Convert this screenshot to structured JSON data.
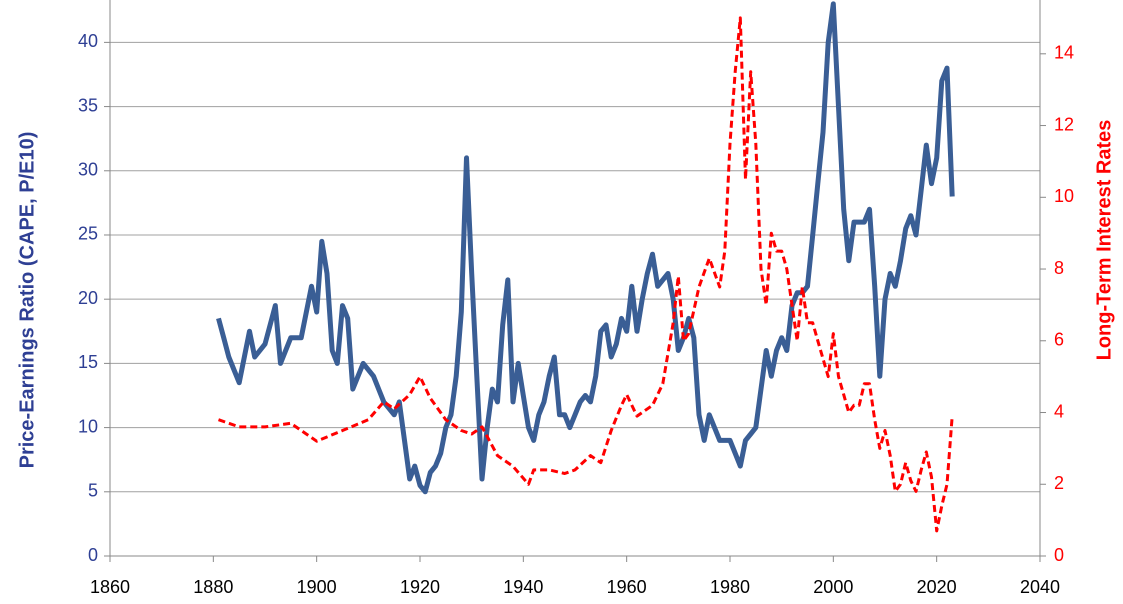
{
  "chart_data": {
    "type": "line",
    "ylabel": "Price-Earnings Ratio (CAPE, P/E10)",
    "y2label": "Long-Term Interest Rates",
    "xlim": [
      1860,
      2040
    ],
    "xticks": [
      1860,
      1880,
      1900,
      1920,
      1940,
      1960,
      1980,
      2000,
      2020,
      2040
    ],
    "ylim": [
      0,
      43.3
    ],
    "yticks": [
      0,
      5,
      10,
      15,
      20,
      25,
      30,
      35,
      40
    ],
    "y2lim": [
      0,
      15.5
    ],
    "y2ticks": [
      0,
      2,
      4,
      6,
      8,
      10,
      12,
      14
    ],
    "grid": true,
    "series": [
      {
        "name": "CAPE",
        "color": "#3a5e95",
        "axis": "y",
        "x": [
          1881,
          1882,
          1883,
          1885,
          1887,
          1888,
          1890,
          1892,
          1893,
          1895,
          1897,
          1899,
          1900,
          1901,
          1902,
          1903,
          1904,
          1905,
          1906,
          1907,
          1908,
          1909,
          1911,
          1913,
          1915,
          1916,
          1917,
          1918,
          1919,
          1920,
          1921,
          1922,
          1923,
          1924,
          1925,
          1926,
          1927,
          1928,
          1929,
          1930,
          1931,
          1932,
          1933,
          1934,
          1935,
          1936,
          1937,
          1938,
          1939,
          1940,
          1941,
          1942,
          1943,
          1944,
          1945,
          1946,
          1947,
          1948,
          1949,
          1950,
          1951,
          1952,
          1953,
          1954,
          1955,
          1956,
          1957,
          1958,
          1959,
          1960,
          1961,
          1962,
          1963,
          1964,
          1965,
          1966,
          1967,
          1968,
          1969,
          1970,
          1971,
          1972,
          1973,
          1974,
          1975,
          1976,
          1977,
          1978,
          1979,
          1980,
          1981,
          1982,
          1983,
          1984,
          1985,
          1986,
          1987,
          1988,
          1989,
          1990,
          1991,
          1992,
          1993,
          1994,
          1995,
          1996,
          1997,
          1998,
          1999,
          2000,
          2001,
          2002,
          2003,
          2004,
          2005,
          2006,
          2007,
          2008,
          2009,
          2010,
          2011,
          2012,
          2013,
          2014,
          2015,
          2016,
          2017,
          2018,
          2019,
          2020,
          2021,
          2022,
          2023
        ],
        "values": [
          18.5,
          17,
          15.5,
          13.5,
          17.5,
          15.5,
          16.5,
          19.5,
          15,
          17,
          17,
          21,
          19,
          24.5,
          22,
          16,
          15,
          19.5,
          18.5,
          13,
          14,
          15,
          14,
          12,
          11,
          12,
          9,
          6,
          7,
          5.5,
          5,
          6.5,
          7,
          8,
          10,
          11,
          14,
          19,
          31,
          22,
          14,
          6,
          10,
          13,
          12,
          18,
          21.5,
          12,
          15,
          12.5,
          10,
          9,
          11,
          12,
          14,
          15.5,
          11,
          11,
          10,
          11,
          12,
          12.5,
          12,
          14,
          17.5,
          18,
          15.5,
          16.5,
          18.5,
          17.5,
          21,
          17.5,
          20,
          22,
          23.5,
          21,
          21.5,
          22,
          20,
          16,
          17,
          18.5,
          17,
          11,
          9,
          11,
          10,
          9,
          9,
          9,
          8,
          7,
          9,
          9.5,
          10,
          13,
          16,
          14,
          16,
          17,
          16,
          19.5,
          20.5,
          20.5,
          21,
          25,
          29,
          33,
          40,
          43,
          35,
          27,
          23,
          26,
          26,
          26,
          27,
          21,
          14,
          20,
          22,
          21,
          23,
          25.5,
          26.5,
          25,
          28.5,
          32,
          29,
          31,
          37,
          38,
          28
        ]
      },
      {
        "name": "Long-Term Interest Rates",
        "color": "#ff0000",
        "axis": "y2",
        "x": [
          1881,
          1885,
          1890,
          1895,
          1900,
          1905,
          1910,
          1913,
          1915,
          1918,
          1920,
          1922,
          1925,
          1928,
          1930,
          1932,
          1935,
          1938,
          1941,
          1942,
          1945,
          1948,
          1950,
          1953,
          1955,
          1957,
          1959,
          1960,
          1962,
          1965,
          1967,
          1969,
          1970,
          1971,
          1972,
          1974,
          1976,
          1978,
          1979,
          1980,
          1981,
          1982,
          1983,
          1984,
          1985,
          1986,
          1987,
          1988,
          1989,
          1990,
          1991,
          1992,
          1993,
          1994,
          1995,
          1996,
          1997,
          1998,
          1999,
          2000,
          2001,
          2002,
          2003,
          2004,
          2005,
          2006,
          2007,
          2008,
          2009,
          2010,
          2011,
          2012,
          2013,
          2014,
          2015,
          2016,
          2017,
          2018,
          2019,
          2020,
          2021,
          2022,
          2023
        ],
        "values": [
          3.8,
          3.6,
          3.6,
          3.7,
          3.2,
          3.5,
          3.8,
          4.3,
          4.1,
          4.5,
          5.0,
          4.4,
          3.8,
          3.5,
          3.4,
          3.6,
          2.8,
          2.5,
          2.0,
          2.4,
          2.4,
          2.3,
          2.4,
          2.8,
          2.6,
          3.5,
          4.2,
          4.5,
          3.9,
          4.2,
          4.8,
          6.5,
          7.8,
          6.0,
          6.2,
          7.5,
          8.3,
          7.5,
          8.5,
          11.5,
          13.5,
          15.0,
          10.5,
          13.5,
          11.5,
          8.0,
          7.0,
          9.0,
          8.5,
          8.5,
          8.0,
          7.0,
          6.0,
          7.5,
          6.5,
          6.5,
          6.0,
          5.5,
          5.0,
          6.2,
          5.0,
          4.5,
          4.0,
          4.2,
          4.2,
          4.8,
          4.8,
          3.8,
          3.0,
          3.5,
          2.8,
          1.8,
          2.0,
          2.6,
          2.1,
          1.8,
          2.4,
          2.9,
          2.2,
          0.7,
          1.4,
          2.0,
          3.9
        ]
      }
    ]
  }
}
